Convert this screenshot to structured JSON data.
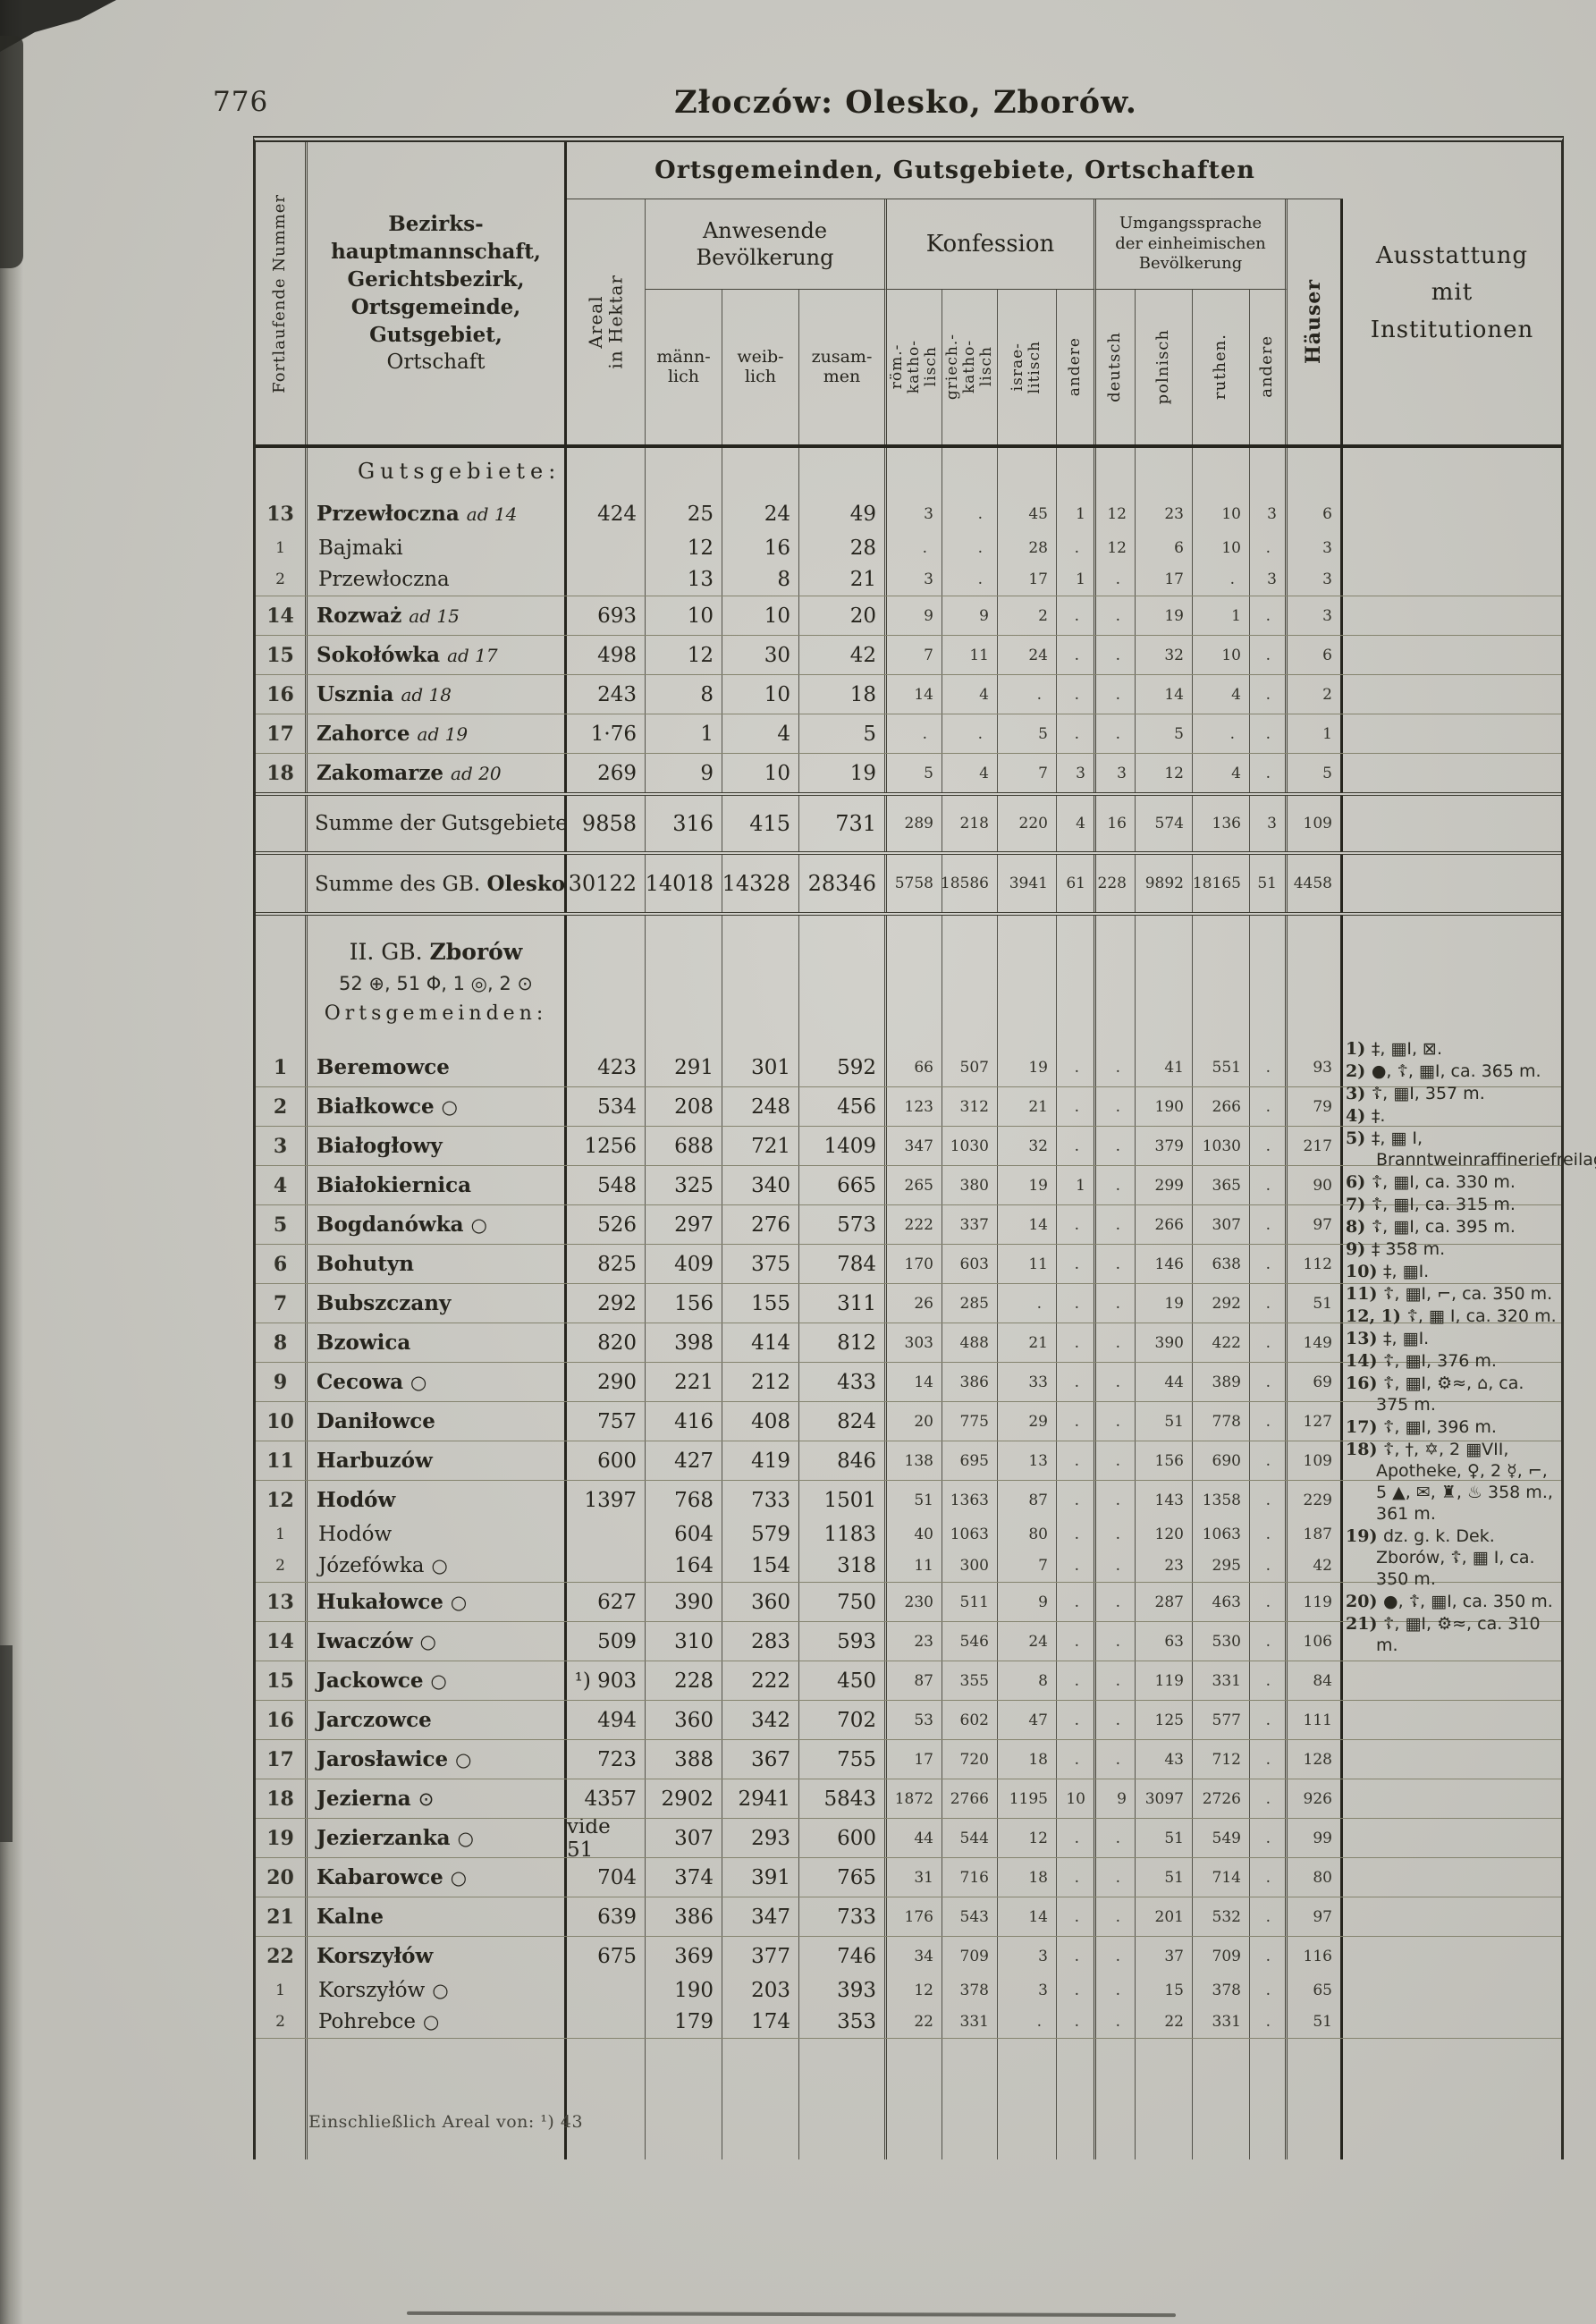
{
  "page": {
    "number": "776",
    "title": "Złoczów: Olesko, Zborów.",
    "footnote": "Einschließlich Areal von: ¹) 43"
  },
  "header": {
    "banner": "Ortsgemeinden, Gutsgebiete, Ortschaften",
    "col_nr": "Fortlaufende Nummer",
    "col_name_lines": [
      "Bezirks-",
      "hauptmannschaft,",
      "Gerichtsbezirk,",
      "Ortsgemeinde,",
      "Gutsgebiet,",
      "Ortschaft"
    ],
    "col_name_bold": [
      true,
      true,
      true,
      true,
      true,
      false
    ],
    "col_areal": "Areal\nin Hektar",
    "group_population": "Anwesende\nBevölkerung",
    "pop_cols": [
      "männ-\nlich",
      "weib-\nlich",
      "zusam-\nmen"
    ],
    "group_confession": "Konfession",
    "conf_cols": [
      "röm.-\nkatho-\nlisch",
      "griech.-\nkatho-\nlisch",
      "israe-\nlitisch",
      "andere"
    ],
    "group_language": "Umgangssprache\nder einheimischen\nBevölkerung",
    "lang_cols": [
      "deutsch",
      "polnisch",
      "ruthen.",
      "andere"
    ],
    "col_houses": "Häuser",
    "col_institutions": "Ausstattung\nmit\nInstitutionen"
  },
  "table": {
    "rows": [
      {
        "t": "label",
        "text": "Gutsgebiete:",
        "sep": "none"
      },
      {
        "t": "main",
        "nr": "13",
        "name": "Przewłoczna",
        "suf": "ad 14",
        "areal": "424",
        "m": "25",
        "w": "24",
        "z": "49",
        "rk": "3",
        "gk": ".",
        "is": "45",
        "ka": "1",
        "de": "12",
        "pl": "23",
        "ru": "10",
        "la": "3",
        "h": "6",
        "sep": "none"
      },
      {
        "t": "sub",
        "nr": "1",
        "name": "Bajmaki",
        "m": "12",
        "w": "16",
        "z": "28",
        "rk": ".",
        "gk": ".",
        "is": "28",
        "ka": ".",
        "de": "12",
        "pl": "6",
        "ru": "10",
        "la": ".",
        "h": "3",
        "sep": "none"
      },
      {
        "t": "subend",
        "nr": "2",
        "name": "Przewłoczna",
        "m": "13",
        "w": "8",
        "z": "21",
        "rk": "3",
        "gk": ".",
        "is": "17",
        "ka": "1",
        "de": ".",
        "pl": "17",
        "ru": ".",
        "la": "3",
        "h": "3",
        "sep": "thin"
      },
      {
        "t": "main",
        "nr": "14",
        "name": "Rozważ",
        "suf": "ad 15",
        "areal": "693",
        "m": "10",
        "w": "10",
        "z": "20",
        "rk": "9",
        "gk": "9",
        "is": "2",
        "ka": ".",
        "de": ".",
        "pl": "19",
        "ru": "1",
        "la": ".",
        "h": "3",
        "sep": "thin"
      },
      {
        "t": "main",
        "nr": "15",
        "name": "Sokołówka",
        "suf": "ad 17",
        "areal": "498",
        "m": "12",
        "w": "30",
        "z": "42",
        "rk": "7",
        "gk": "11",
        "is": "24",
        "ka": ".",
        "de": ".",
        "pl": "32",
        "ru": "10",
        "la": ".",
        "h": "6",
        "sep": "thin"
      },
      {
        "t": "main",
        "nr": "16",
        "name": "Usznia",
        "suf": "ad 18",
        "areal": "243",
        "m": "8",
        "w": "10",
        "z": "18",
        "rk": "14",
        "gk": "4",
        "is": ".",
        "ka": ".",
        "de": ".",
        "pl": "14",
        "ru": "4",
        "la": ".",
        "h": "2",
        "sep": "thin"
      },
      {
        "t": "main",
        "nr": "17",
        "name": "Zahorce",
        "suf": "ad 19",
        "areal": "1·76",
        "m": "1",
        "w": "4",
        "z": "5",
        "rk": ".",
        "gk": ".",
        "is": "5",
        "ka": ".",
        "de": ".",
        "pl": "5",
        "ru": ".",
        "la": ".",
        "h": "1",
        "sep": "thin"
      },
      {
        "t": "main",
        "nr": "18",
        "name": "Zakomarze",
        "suf": "ad 20",
        "areal": "269",
        "m": "9",
        "w": "10",
        "z": "19",
        "rk": "5",
        "gk": "4",
        "is": "7",
        "ka": "3",
        "de": "3",
        "pl": "12",
        "ru": "4",
        "la": ".",
        "h": "5",
        "sep": "dbl"
      },
      {
        "t": "sum",
        "label": "Summe der Gutsgebiete",
        "label_bold": "",
        "areal": "9858",
        "m": "316",
        "w": "415",
        "z": "731",
        "rk": "289",
        "gk": "218",
        "is": "220",
        "ka": "4",
        "de": "16",
        "pl": "574",
        "ru": "136",
        "la": "3",
        "h": "109",
        "sep": "dbl"
      },
      {
        "t": "sum2",
        "label": "Summe des GB. ",
        "label_bold": "Olesko",
        "areal": "30122",
        "m": "14018",
        "w": "14328",
        "z": "28346",
        "rk": "5758",
        "gk": "18586",
        "is": "3941",
        "ka": "61",
        "de": "228",
        "pl": "9892",
        "ru": "18165",
        "la": "51",
        "h": "4458",
        "sep": "dbl"
      },
      {
        "t": "section",
        "pre": "II. GB. ",
        "bold": "Zborów",
        "symbols": "52 ⊕, 51 Φ, 1 ◎, 2 ⊙",
        "label": "Ortsgemeinden:",
        "sep": "none"
      },
      {
        "t": "main",
        "nr": "1",
        "name": "Beremowce",
        "areal": "423",
        "m": "291",
        "w": "301",
        "z": "592",
        "rk": "66",
        "gk": "507",
        "is": "19",
        "ka": ".",
        "de": ".",
        "pl": "41",
        "ru": "551",
        "la": ".",
        "h": "93",
        "sep": "thin"
      },
      {
        "t": "main",
        "nr": "2",
        "name": "Białkowce",
        "mark": "○",
        "areal": "534",
        "m": "208",
        "w": "248",
        "z": "456",
        "rk": "123",
        "gk": "312",
        "is": "21",
        "ka": ".",
        "de": ".",
        "pl": "190",
        "ru": "266",
        "la": ".",
        "h": "79",
        "sep": "thin"
      },
      {
        "t": "main",
        "nr": "3",
        "name": "Białogłowy",
        "areal": "1256",
        "m": "688",
        "w": "721",
        "z": "1409",
        "rk": "347",
        "gk": "1030",
        "is": "32",
        "ka": ".",
        "de": ".",
        "pl": "379",
        "ru": "1030",
        "la": ".",
        "h": "217",
        "sep": "thin"
      },
      {
        "t": "main",
        "nr": "4",
        "name": "Białokiernica",
        "areal": "548",
        "m": "325",
        "w": "340",
        "z": "665",
        "rk": "265",
        "gk": "380",
        "is": "19",
        "ka": "1",
        "de": ".",
        "pl": "299",
        "ru": "365",
        "la": ".",
        "h": "90",
        "sep": "thin"
      },
      {
        "t": "main",
        "nr": "5",
        "name": "Bogdanówka",
        "mark": "○",
        "areal": "526",
        "m": "297",
        "w": "276",
        "z": "573",
        "rk": "222",
        "gk": "337",
        "is": "14",
        "ka": ".",
        "de": ".",
        "pl": "266",
        "ru": "307",
        "la": ".",
        "h": "97",
        "sep": "thin"
      },
      {
        "t": "main",
        "nr": "6",
        "name": "Bohutyn",
        "areal": "825",
        "m": "409",
        "w": "375",
        "z": "784",
        "rk": "170",
        "gk": "603",
        "is": "11",
        "ka": ".",
        "de": ".",
        "pl": "146",
        "ru": "638",
        "la": ".",
        "h": "112",
        "sep": "thin"
      },
      {
        "t": "main",
        "nr": "7",
        "name": "Bubszczany",
        "areal": "292",
        "m": "156",
        "w": "155",
        "z": "311",
        "rk": "26",
        "gk": "285",
        "is": ".",
        "ka": ".",
        "de": ".",
        "pl": "19",
        "ru": "292",
        "la": ".",
        "h": "51",
        "sep": "thin"
      },
      {
        "t": "main",
        "nr": "8",
        "name": "Bzowica",
        "areal": "820",
        "m": "398",
        "w": "414",
        "z": "812",
        "rk": "303",
        "gk": "488",
        "is": "21",
        "ka": ".",
        "de": ".",
        "pl": "390",
        "ru": "422",
        "la": ".",
        "h": "149",
        "sep": "thin"
      },
      {
        "t": "main",
        "nr": "9",
        "name": "Cecowa",
        "mark": "○",
        "areal": "290",
        "m": "221",
        "w": "212",
        "z": "433",
        "rk": "14",
        "gk": "386",
        "is": "33",
        "ka": ".",
        "de": ".",
        "pl": "44",
        "ru": "389",
        "la": ".",
        "h": "69",
        "sep": "thin"
      },
      {
        "t": "main",
        "nr": "10",
        "name": "Daniłowce",
        "areal": "757",
        "m": "416",
        "w": "408",
        "z": "824",
        "rk": "20",
        "gk": "775",
        "is": "29",
        "ka": ".",
        "de": ".",
        "pl": "51",
        "ru": "778",
        "la": ".",
        "h": "127",
        "sep": "thin"
      },
      {
        "t": "main",
        "nr": "11",
        "name": "Harbuzów",
        "areal": "600",
        "m": "427",
        "w": "419",
        "z": "846",
        "rk": "138",
        "gk": "695",
        "is": "13",
        "ka": ".",
        "de": ".",
        "pl": "156",
        "ru": "690",
        "la": ".",
        "h": "109",
        "sep": "thin"
      },
      {
        "t": "main",
        "nr": "12",
        "name": "Hodów",
        "areal": "1397",
        "m": "768",
        "w": "733",
        "z": "1501",
        "rk": "51",
        "gk": "1363",
        "is": "87",
        "ka": ".",
        "de": ".",
        "pl": "143",
        "ru": "1358",
        "la": ".",
        "h": "229",
        "sep": "none"
      },
      {
        "t": "sub",
        "nr": "1",
        "name": "Hodów",
        "m": "604",
        "w": "579",
        "z": "1183",
        "rk": "40",
        "gk": "1063",
        "is": "80",
        "ka": ".",
        "de": ".",
        "pl": "120",
        "ru": "1063",
        "la": ".",
        "h": "187",
        "sep": "none"
      },
      {
        "t": "subend",
        "nr": "2",
        "name": "Józefówka",
        "mark": "○",
        "m": "164",
        "w": "154",
        "z": "318",
        "rk": "11",
        "gk": "300",
        "is": "7",
        "ka": ".",
        "de": ".",
        "pl": "23",
        "ru": "295",
        "la": ".",
        "h": "42",
        "sep": "thin"
      },
      {
        "t": "main",
        "nr": "13",
        "name": "Hukałowce",
        "mark": "○",
        "areal": "627",
        "m": "390",
        "w": "360",
        "z": "750",
        "rk": "230",
        "gk": "511",
        "is": "9",
        "ka": ".",
        "de": ".",
        "pl": "287",
        "ru": "463",
        "la": ".",
        "h": "119",
        "sep": "thin"
      },
      {
        "t": "main",
        "nr": "14",
        "name": "Iwaczów",
        "mark": "○",
        "areal": "509",
        "m": "310",
        "w": "283",
        "z": "593",
        "rk": "23",
        "gk": "546",
        "is": "24",
        "ka": ".",
        "de": ".",
        "pl": "63",
        "ru": "530",
        "la": ".",
        "h": "106",
        "sep": "thin"
      },
      {
        "t": "main",
        "nr": "15",
        "name": "Jackowce",
        "mark": "○",
        "areal": "¹) 903",
        "m": "228",
        "w": "222",
        "z": "450",
        "rk": "87",
        "gk": "355",
        "is": "8",
        "ka": ".",
        "de": ".",
        "pl": "119",
        "ru": "331",
        "la": ".",
        "h": "84",
        "sep": "thin"
      },
      {
        "t": "main",
        "nr": "16",
        "name": "Jarczowce",
        "areal": "494",
        "m": "360",
        "w": "342",
        "z": "702",
        "rk": "53",
        "gk": "602",
        "is": "47",
        "ka": ".",
        "de": ".",
        "pl": "125",
        "ru": "577",
        "la": ".",
        "h": "111",
        "sep": "thin"
      },
      {
        "t": "main",
        "nr": "17",
        "name": "Jarosławice",
        "mark": "○",
        "areal": "723",
        "m": "388",
        "w": "367",
        "z": "755",
        "rk": "17",
        "gk": "720",
        "is": "18",
        "ka": ".",
        "de": ".",
        "pl": "43",
        "ru": "712",
        "la": ".",
        "h": "128",
        "sep": "thin"
      },
      {
        "t": "main",
        "nr": "18",
        "name": "Jezierna",
        "mark": "⊙",
        "areal": "4357",
        "m": "2902",
        "w": "2941",
        "z": "5843",
        "rk": "1872",
        "gk": "2766",
        "is": "1195",
        "ka": "10",
        "de": "9",
        "pl": "3097",
        "ru": "2726",
        "la": ".",
        "h": "926",
        "sep": "thin"
      },
      {
        "t": "main",
        "nr": "19",
        "name": "Jezierzanka",
        "mark": "○",
        "areal": "vide 51",
        "m": "307",
        "w": "293",
        "z": "600",
        "rk": "44",
        "gk": "544",
        "is": "12",
        "ka": ".",
        "de": ".",
        "pl": "51",
        "ru": "549",
        "la": ".",
        "h": "99",
        "sep": "thin"
      },
      {
        "t": "main",
        "nr": "20",
        "name": "Kabarowce",
        "mark": "○",
        "areal": "704",
        "m": "374",
        "w": "391",
        "z": "765",
        "rk": "31",
        "gk": "716",
        "is": "18",
        "ka": ".",
        "de": ".",
        "pl": "51",
        "ru": "714",
        "la": ".",
        "h": "80",
        "sep": "thin"
      },
      {
        "t": "main",
        "nr": "21",
        "name": "Kalne",
        "areal": "639",
        "m": "386",
        "w": "347",
        "z": "733",
        "rk": "176",
        "gk": "543",
        "is": "14",
        "ka": ".",
        "de": ".",
        "pl": "201",
        "ru": "532",
        "la": ".",
        "h": "97",
        "sep": "thin"
      },
      {
        "t": "main",
        "nr": "22",
        "name": "Korszyłów",
        "areal": "675",
        "m": "369",
        "w": "377",
        "z": "746",
        "rk": "34",
        "gk": "709",
        "is": "3",
        "ka": ".",
        "de": ".",
        "pl": "37",
        "ru": "709",
        "la": ".",
        "h": "116",
        "sep": "none"
      },
      {
        "t": "sub",
        "nr": "1",
        "name": "Korszyłów",
        "mark": "○",
        "m": "190",
        "w": "203",
        "z": "393",
        "rk": "12",
        "gk": "378",
        "is": "3",
        "ka": ".",
        "de": ".",
        "pl": "15",
        "ru": "378",
        "la": ".",
        "h": "65",
        "sep": "none"
      },
      {
        "t": "subend",
        "nr": "2",
        "name": "Pohrebce",
        "mark": "○",
        "m": "179",
        "w": "174",
        "z": "353",
        "rk": "22",
        "gk": "331",
        "is": ".",
        "ka": ".",
        "de": ".",
        "pl": "22",
        "ru": "331",
        "la": ".",
        "h": "51",
        "sep": "thin"
      },
      {
        "t": "filler",
        "sep": "none"
      }
    ]
  },
  "annotations": [
    {
      "n": "1)",
      "text": "‡, ▦I, ⊠."
    },
    {
      "n": "2)",
      "text": "●, ☦, ▦I, ca. 365 m."
    },
    {
      "n": "3)",
      "text": "☦, ▦I, 357 m."
    },
    {
      "n": "4)",
      "text": "‡."
    },
    {
      "n": "5)",
      "text": "‡, ▦ I, Branntweinraffineriefreilageraktiengesellschaft."
    },
    {
      "n": "6)",
      "text": "☦, ▦I, ca. 330 m."
    },
    {
      "n": "7)",
      "text": "☦, ▦I, ca. 315 m."
    },
    {
      "n": "8)",
      "text": "☦, ▦I, ca. 395 m."
    },
    {
      "n": "9)",
      "text": "‡ 358 m."
    },
    {
      "n": "10)",
      "text": "‡, ▦I."
    },
    {
      "n": "11)",
      "text": "☦, ▦I, ⌐, ca. 350 m."
    },
    {
      "n": "12, 1)",
      "text": "☦, ▦ I, ca. 320 m."
    },
    {
      "n": "13)",
      "text": "‡, ▦I."
    },
    {
      "n": "14)",
      "text": "☦, ▦I, 376 m."
    },
    {
      "n": "16)",
      "text": "☦, ▦I, ⚙≈, ⌂, ca. 375 m."
    },
    {
      "n": "17)",
      "text": "☦, ▦I, 396 m."
    },
    {
      "n": "18)",
      "text": "☦, †, ✡, 2 ▦VII, Apotheke, ♀, 2 ☿, ⌐, 5 ▲, ✉, ♜, ♨ 358 m., 361 m."
    },
    {
      "n": "19)",
      "text": "dz. g. k. Dek. Zborów, ☦, ▦ I, ca. 350 m."
    },
    {
      "n": "20)",
      "text": "●, ☦, ▦I, ca. 350 m."
    },
    {
      "n": "21)",
      "text": "☦, ▦I, ⚙≈, ca. 310 m."
    }
  ],
  "colors": {
    "paper": "#c9c8c1",
    "ink": "#26241d",
    "rule": "#85846f",
    "border": "#2e2d26"
  }
}
